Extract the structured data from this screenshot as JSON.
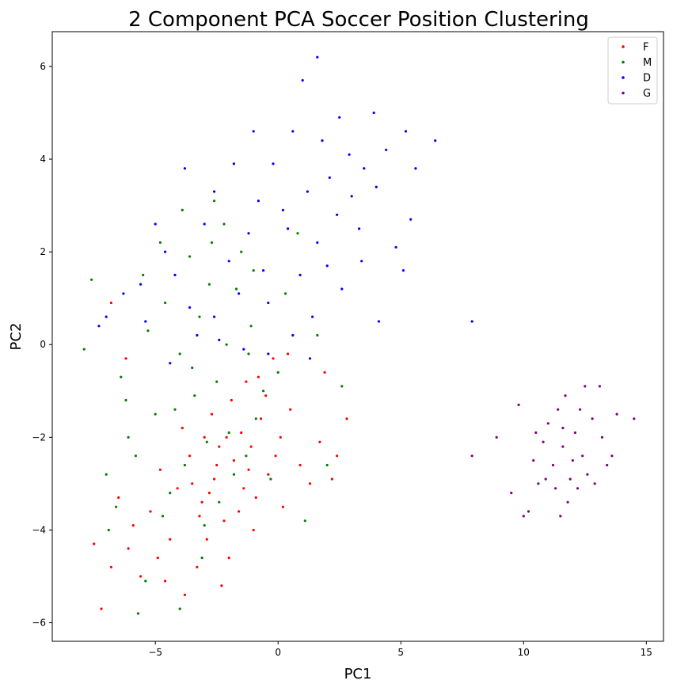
{
  "chart_data": {
    "type": "scatter",
    "title": "2 Component PCA Soccer Position Clustering",
    "xlabel": "PC1",
    "ylabel": "PC2",
    "xlim": [
      -9.2,
      15.7
    ],
    "ylim": [
      -6.4,
      6.75
    ],
    "xticks": [
      -5,
      0,
      5,
      10,
      15
    ],
    "yticks": [
      -6,
      -4,
      -2,
      0,
      2,
      4,
      6
    ],
    "grid": false,
    "legend_position": "top-right",
    "series": [
      {
        "name": "F",
        "color": "#ff0000",
        "points": [
          [
            -1.8,
            -2.5
          ],
          [
            -2.6,
            -2.9
          ],
          [
            -1.1,
            -2.2
          ],
          [
            -3.1,
            -3.4
          ],
          [
            -0.7,
            -1.6
          ],
          [
            -2.2,
            -3.8
          ],
          [
            -1.5,
            -1.9
          ],
          [
            0.1,
            -2.0
          ],
          [
            -3.6,
            -2.4
          ],
          [
            -2.9,
            -4.2
          ],
          [
            -0.4,
            -2.8
          ],
          [
            -1.9,
            -1.2
          ],
          [
            -4.1,
            -3.1
          ],
          [
            -2.4,
            -2.2
          ],
          [
            -0.9,
            -3.3
          ],
          [
            0.5,
            -1.4
          ],
          [
            -3.3,
            -4.8
          ],
          [
            -5.2,
            -3.6
          ],
          [
            -6.1,
            -4.4
          ],
          [
            -4.6,
            -5.1
          ],
          [
            -1.3,
            -0.8
          ],
          [
            0.9,
            -2.6
          ],
          [
            1.3,
            -3.0
          ],
          [
            -2.0,
            -4.6
          ],
          [
            -3.8,
            -5.4
          ],
          [
            -5.6,
            -5.0
          ],
          [
            -7.2,
            -5.7
          ],
          [
            -6.5,
            -3.3
          ],
          [
            2.4,
            -2.4
          ],
          [
            2.8,
            -1.6
          ],
          [
            -0.2,
            -0.3
          ],
          [
            0.4,
            -0.2
          ],
          [
            -2.7,
            -1.5
          ],
          [
            -1.6,
            -3.6
          ],
          [
            -3.0,
            -2.0
          ],
          [
            -4.4,
            -4.2
          ],
          [
            -1.0,
            -4.0
          ],
          [
            1.7,
            -2.1
          ],
          [
            -2.3,
            -5.2
          ],
          [
            -3.5,
            -3.0
          ],
          [
            -0.5,
            -1.1
          ],
          [
            -1.2,
            -2.7
          ],
          [
            0.2,
            -3.5
          ],
          [
            -2.8,
            -3.2
          ],
          [
            -4.8,
            -2.7
          ],
          [
            -5.9,
            -3.9
          ],
          [
            -6.8,
            -4.8
          ],
          [
            -7.5,
            -4.3
          ],
          [
            -6.2,
            -0.3
          ],
          [
            -6.8,
            0.9
          ],
          [
            1.9,
            -0.6
          ],
          [
            -0.8,
            -0.7
          ],
          [
            2.2,
            -2.9
          ],
          [
            -3.9,
            -1.8
          ],
          [
            -2.5,
            -2.6
          ],
          [
            -1.4,
            -3.1
          ],
          [
            -0.1,
            -2.4
          ],
          [
            -3.2,
            -3.7
          ],
          [
            -4.9,
            -4.6
          ],
          [
            -2.1,
            -2.0
          ]
        ]
      },
      {
        "name": "M",
        "color": "#008000",
        "points": [
          [
            -2.5,
            -0.8
          ],
          [
            -3.2,
            0.6
          ],
          [
            -1.7,
            1.2
          ],
          [
            -2.9,
            -2.1
          ],
          [
            -4.0,
            -0.2
          ],
          [
            -1.1,
            0.4
          ],
          [
            -3.6,
            1.9
          ],
          [
            -2.2,
            2.6
          ],
          [
            -5.0,
            -1.5
          ],
          [
            -4.4,
            -3.2
          ],
          [
            -3.0,
            -3.9
          ],
          [
            -5.8,
            -2.4
          ],
          [
            -6.4,
            -0.7
          ],
          [
            -7.9,
            -0.1
          ],
          [
            -7.6,
            1.4
          ],
          [
            -4.8,
            2.2
          ],
          [
            -3.9,
            2.9
          ],
          [
            -2.6,
            3.1
          ],
          [
            -1.5,
            2.0
          ],
          [
            0.3,
            1.1
          ],
          [
            -0.6,
            -1.0
          ],
          [
            -5.4,
            -5.1
          ],
          [
            -5.7,
            -5.8
          ],
          [
            -4.0,
            -5.7
          ],
          [
            -6.9,
            -4.0
          ],
          [
            -7.0,
            -2.8
          ],
          [
            -6.1,
            -2.0
          ],
          [
            -2.0,
            -1.9
          ],
          [
            -1.3,
            -2.4
          ],
          [
            -0.3,
            -2.9
          ],
          [
            1.1,
            -3.8
          ],
          [
            2.0,
            -2.6
          ],
          [
            2.6,
            -0.9
          ],
          [
            1.6,
            0.2
          ],
          [
            -3.4,
            -1.1
          ],
          [
            -4.6,
            0.9
          ],
          [
            -5.3,
            0.3
          ],
          [
            -2.1,
            0.0
          ],
          [
            -1.0,
            1.6
          ],
          [
            0.8,
            2.4
          ],
          [
            -3.8,
            -2.6
          ],
          [
            -4.2,
            -1.4
          ],
          [
            -2.8,
            1.3
          ],
          [
            -5.5,
            1.5
          ],
          [
            -6.2,
            -1.2
          ],
          [
            -3.1,
            -4.6
          ],
          [
            -2.4,
            -3.4
          ],
          [
            -1.8,
            -2.8
          ],
          [
            -0.9,
            -1.6
          ],
          [
            0.0,
            -0.6
          ],
          [
            -4.7,
            -3.7
          ],
          [
            -3.5,
            -0.5
          ],
          [
            -6.6,
            -3.5
          ],
          [
            -1.2,
            -0.2
          ],
          [
            -2.7,
            2.2
          ]
        ]
      },
      {
        "name": "D",
        "color": "#0000ff",
        "points": [
          [
            1.2,
            3.3
          ],
          [
            2.1,
            3.6
          ],
          [
            0.4,
            2.5
          ],
          [
            -0.6,
            1.6
          ],
          [
            -1.6,
            1.1
          ],
          [
            -2.6,
            0.6
          ],
          [
            -3.3,
            0.2
          ],
          [
            2.9,
            4.1
          ],
          [
            3.5,
            3.8
          ],
          [
            1.8,
            4.4
          ],
          [
            0.6,
            4.6
          ],
          [
            1.6,
            6.2
          ],
          [
            1.0,
            5.7
          ],
          [
            3.9,
            5.0
          ],
          [
            5.2,
            4.6
          ],
          [
            6.4,
            4.4
          ],
          [
            5.6,
            3.8
          ],
          [
            5.4,
            2.7
          ],
          [
            4.8,
            2.1
          ],
          [
            5.1,
            1.6
          ],
          [
            3.4,
            1.8
          ],
          [
            2.6,
            1.2
          ],
          [
            1.4,
            0.6
          ],
          [
            0.6,
            0.2
          ],
          [
            -0.4,
            -0.2
          ],
          [
            -1.4,
            -0.1
          ],
          [
            -2.4,
            0.1
          ],
          [
            -3.6,
            0.8
          ],
          [
            -4.2,
            1.5
          ],
          [
            -4.6,
            2.0
          ],
          [
            -5.0,
            2.6
          ],
          [
            -3.8,
            3.8
          ],
          [
            -2.6,
            3.3
          ],
          [
            -1.8,
            3.9
          ],
          [
            -1.0,
            4.6
          ],
          [
            -0.2,
            3.9
          ],
          [
            0.2,
            2.9
          ],
          [
            1.6,
            2.2
          ],
          [
            2.4,
            2.8
          ],
          [
            3.0,
            3.2
          ],
          [
            4.0,
            3.4
          ],
          [
            -5.6,
            1.3
          ],
          [
            -6.3,
            1.1
          ],
          [
            -7.0,
            0.6
          ],
          [
            -7.3,
            0.4
          ],
          [
            -5.4,
            0.5
          ],
          [
            -4.4,
            -0.4
          ],
          [
            -1.2,
            2.4
          ],
          [
            -0.8,
            3.1
          ],
          [
            0.9,
            1.5
          ],
          [
            2.0,
            1.7
          ],
          [
            3.3,
            2.5
          ],
          [
            4.4,
            4.2
          ],
          [
            2.5,
            4.9
          ],
          [
            -2.0,
            1.8
          ],
          [
            -3.0,
            2.6
          ],
          [
            7.9,
            0.5
          ],
          [
            -0.4,
            0.9
          ],
          [
            1.3,
            -0.3
          ],
          [
            4.1,
            0.5
          ]
        ]
      },
      {
        "name": "G",
        "color": "#800080",
        "points": [
          [
            11.6,
            -2.2
          ],
          [
            12.1,
            -1.9
          ],
          [
            11.2,
            -2.6
          ],
          [
            12.4,
            -2.4
          ],
          [
            11.9,
            -2.9
          ],
          [
            10.8,
            -2.1
          ],
          [
            12.8,
            -1.6
          ],
          [
            11.4,
            -1.4
          ],
          [
            12.2,
            -3.1
          ],
          [
            10.6,
            -3.0
          ],
          [
            13.2,
            -2.0
          ],
          [
            11.0,
            -1.7
          ],
          [
            12.6,
            -2.8
          ],
          [
            11.8,
            -3.4
          ],
          [
            10.4,
            -2.5
          ],
          [
            13.4,
            -2.6
          ],
          [
            11.5,
            -3.7
          ],
          [
            10.2,
            -3.6
          ],
          [
            12.5,
            -0.9
          ],
          [
            13.1,
            -0.9
          ],
          [
            11.7,
            -1.1
          ],
          [
            9.8,
            -1.3
          ],
          [
            8.9,
            -2.0
          ],
          [
            9.5,
            -3.2
          ],
          [
            10.0,
            -3.7
          ],
          [
            14.5,
            -1.6
          ],
          [
            13.8,
            -1.5
          ],
          [
            13.6,
            -2.4
          ],
          [
            12.9,
            -3.0
          ],
          [
            11.3,
            -3.1
          ],
          [
            10.9,
            -2.9
          ],
          [
            12.0,
            -2.5
          ],
          [
            11.6,
            -1.8
          ],
          [
            12.3,
            -1.4
          ],
          [
            10.5,
            -1.9
          ],
          [
            7.9,
            -2.4
          ]
        ]
      }
    ]
  }
}
